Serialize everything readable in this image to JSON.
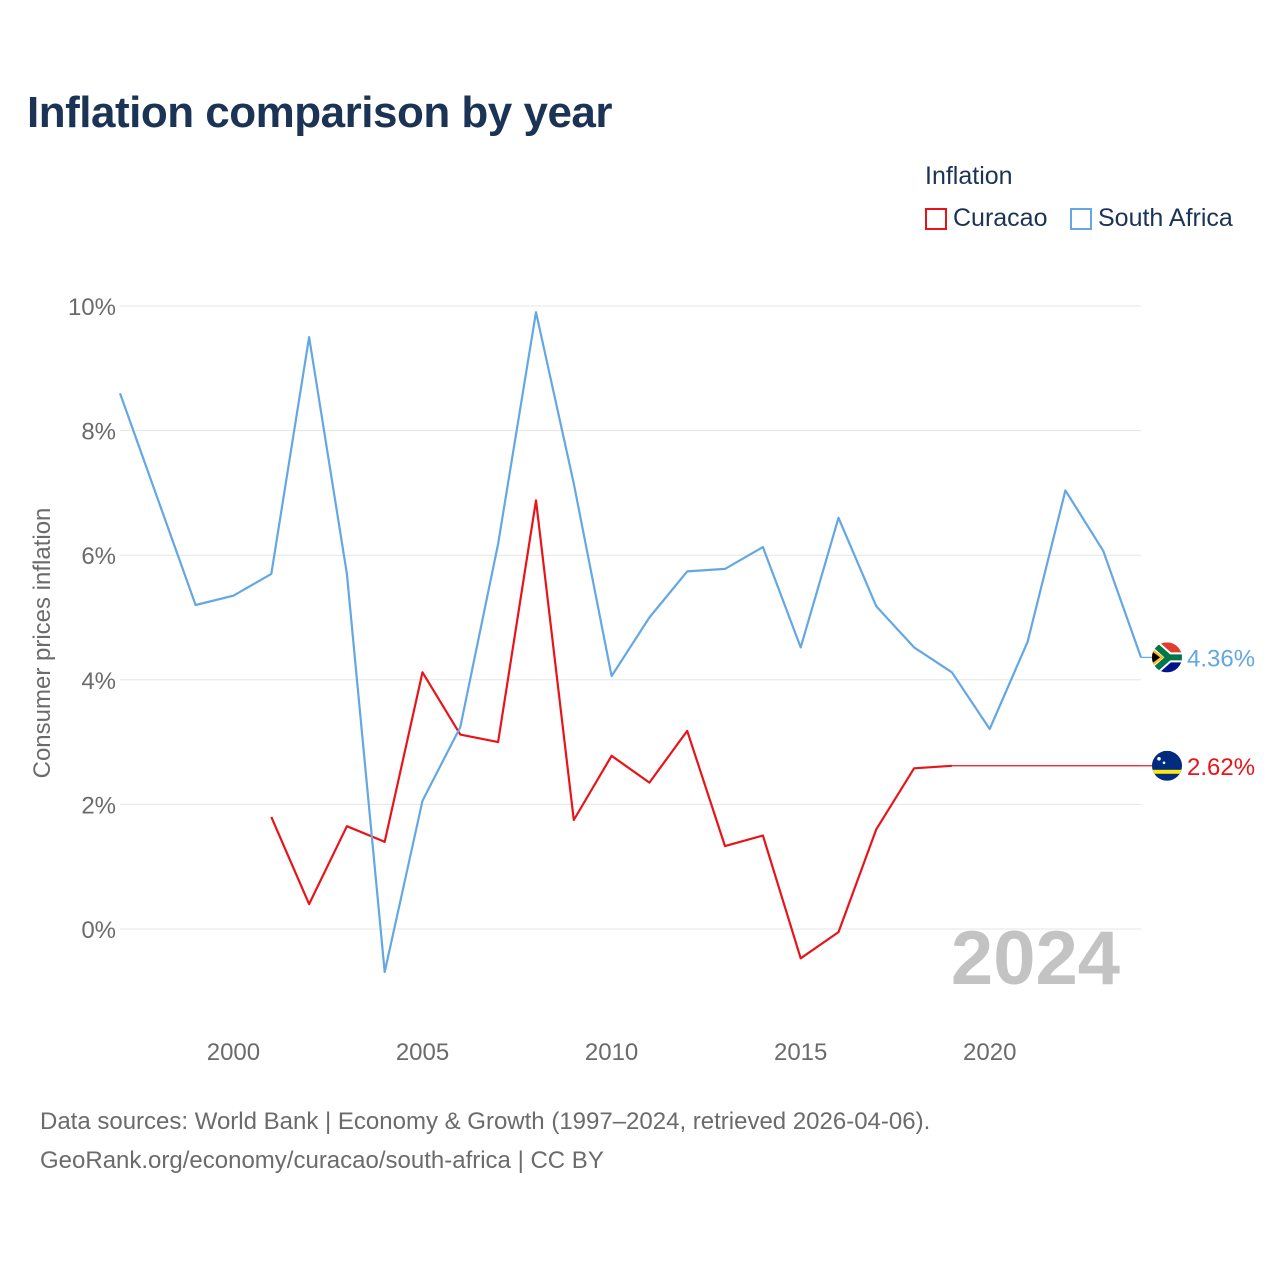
{
  "chart_data": {
    "type": "line",
    "title": "Inflation comparison by year",
    "legend_title": "Inflation",
    "ylabel": "Consumer prices inflation",
    "xlabel": "",
    "xlim": [
      1997,
      2024
    ],
    "ylim": [
      -1.5,
      10
    ],
    "x_ticks": [
      2000,
      2005,
      2010,
      2015,
      2020
    ],
    "y_ticks": [
      0,
      2,
      4,
      6,
      8,
      10
    ],
    "y_tick_labels": [
      "0%",
      "2%",
      "4%",
      "6%",
      "8%",
      "10%"
    ],
    "year_watermark": "2024",
    "series": [
      {
        "name": "Curacao",
        "color": "#e8141a",
        "flag": "curacao-flag",
        "end_label": "2.62%",
        "points": [
          [
            2001,
            1.8
          ],
          [
            2002,
            0.4
          ],
          [
            2003,
            1.65
          ],
          [
            2004,
            1.4
          ],
          [
            2005,
            4.12
          ],
          [
            2006,
            3.12
          ],
          [
            2007,
            3.0
          ],
          [
            2008,
            6.88
          ],
          [
            2009,
            1.75
          ],
          [
            2010,
            2.78
          ],
          [
            2011,
            2.35
          ],
          [
            2012,
            3.18
          ],
          [
            2013,
            1.33
          ],
          [
            2014,
            1.5
          ],
          [
            2015,
            -0.47
          ],
          [
            2016,
            -0.05
          ],
          [
            2017,
            1.6
          ],
          [
            2018,
            2.58
          ],
          [
            2019,
            2.62
          ]
        ],
        "carry_forward_to": 2024
      },
      {
        "name": "South Africa",
        "color": "#64a7e2",
        "flag": "south-africa-flag",
        "end_label": "4.36%",
        "points": [
          [
            1997,
            8.6
          ],
          [
            1998,
            6.9
          ],
          [
            1999,
            5.2
          ],
          [
            2000,
            5.35
          ],
          [
            2001,
            5.7
          ],
          [
            2002,
            9.5
          ],
          [
            2003,
            5.7
          ],
          [
            2004,
            -0.69
          ],
          [
            2005,
            2.06
          ],
          [
            2006,
            3.24
          ],
          [
            2007,
            6.18
          ],
          [
            2008,
            9.9
          ],
          [
            2009,
            7.15
          ],
          [
            2010,
            4.06
          ],
          [
            2011,
            5.0
          ],
          [
            2012,
            5.74
          ],
          [
            2013,
            5.78
          ],
          [
            2014,
            6.13
          ],
          [
            2015,
            4.52
          ],
          [
            2016,
            6.6
          ],
          [
            2017,
            5.18
          ],
          [
            2018,
            4.52
          ],
          [
            2019,
            4.12
          ],
          [
            2020,
            3.21
          ],
          [
            2021,
            4.61
          ],
          [
            2022,
            7.04
          ],
          [
            2023,
            6.07
          ],
          [
            2024,
            4.36
          ]
        ]
      }
    ]
  },
  "source": {
    "line1": "Data sources: World Bank | Economy & Growth (1997–2024, retrieved 2026-04-06).",
    "line2": "GeoRank.org/economy/curacao/south-africa | CC BY"
  }
}
